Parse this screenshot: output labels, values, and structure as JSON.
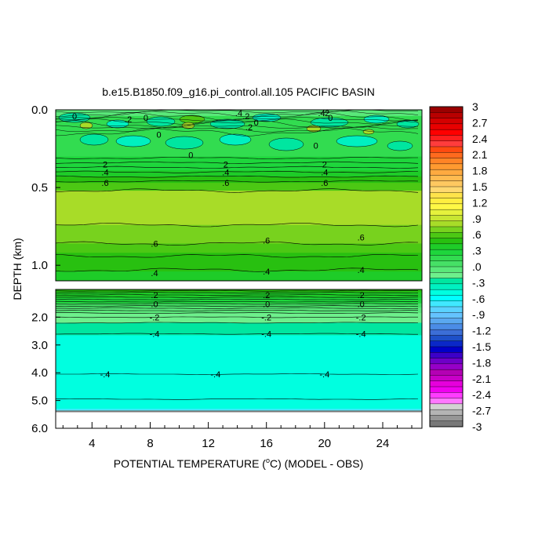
{
  "chart_data": {
    "type": "heatmap",
    "title": "b.e15.B1850.f09_g16.pi_control.all.105 PACIFIC BASIN",
    "xlabel_main": "POTENTIAL TEMPERATURE (",
    "xlabel_unit_sup": "o",
    "xlabel_unit": "C) (MODEL - OBS)",
    "ylabel": "DEPTH (km)",
    "x_range": [
      1.5,
      26.7
    ],
    "x_ticks": [
      4,
      8,
      12,
      16,
      20,
      24
    ],
    "x_tick_labels": [
      "4",
      "8",
      "12",
      "16",
      "20",
      "24"
    ],
    "upper_panel": {
      "depth_range": [
        0.0,
        1.1
      ],
      "y_ticks": [
        0.0,
        0.5,
        1.0
      ],
      "y_tick_labels": [
        "0.0",
        "0.5",
        "1.0"
      ],
      "bands": [
        {
          "top": 0.0,
          "bottom": 0.04,
          "value": 0.0
        },
        {
          "top": 0.04,
          "bottom": 0.12,
          "value": 0.2
        },
        {
          "top": 0.12,
          "bottom": 0.3,
          "value": 0.15
        },
        {
          "top": 0.3,
          "bottom": 0.35,
          "value": 0.25
        },
        {
          "top": 0.35,
          "bottom": 0.39,
          "value": 0.3
        },
        {
          "top": 0.39,
          "bottom": 0.43,
          "value": 0.4
        },
        {
          "top": 0.43,
          "bottom": 0.47,
          "value": 0.5
        },
        {
          "top": 0.47,
          "bottom": 0.52,
          "value": 0.6
        },
        {
          "top": 0.52,
          "bottom": 0.74,
          "value": 0.8
        },
        {
          "top": 0.74,
          "bottom": 0.86,
          "value": 0.7
        },
        {
          "top": 0.86,
          "bottom": 0.92,
          "value": 0.55
        },
        {
          "top": 0.92,
          "bottom": 1.04,
          "value": 0.45
        },
        {
          "top": 1.04,
          "bottom": 1.1,
          "value": 0.35
        }
      ],
      "contour_depths": [
        0.31,
        0.34,
        0.37,
        0.4,
        0.43,
        0.46,
        0.52,
        0.74,
        0.86,
        0.94,
        1.03
      ],
      "contour_labels": [
        {
          "text": "0",
          "x": 2.8,
          "depth": 0.04
        },
        {
          "text": ".2",
          "x": 6.5,
          "depth": 0.06
        },
        {
          "text": "0",
          "x": 7.7,
          "depth": 0.05
        },
        {
          "text": ".4",
          "x": 14.1,
          "depth": 0.02
        },
        {
          "text": ".2",
          "x": 14.6,
          "depth": 0.04
        },
        {
          "text": "0",
          "x": 15.3,
          "depth": 0.08
        },
        {
          "text": ".2",
          "x": 14.8,
          "depth": 0.11
        },
        {
          "text": ".4",
          "x": 19.8,
          "depth": 0.02
        },
        {
          "text": ".2",
          "x": 20.1,
          "depth": 0.02
        },
        {
          "text": "0",
          "x": 20.4,
          "depth": 0.05
        },
        {
          "text": "0",
          "x": 8.6,
          "depth": 0.16
        },
        {
          "text": "0",
          "x": 19.4,
          "depth": 0.23
        },
        {
          "text": "0",
          "x": 10.8,
          "depth": 0.29
        },
        {
          "text": "2",
          "x": 4.9,
          "depth": 0.35
        },
        {
          "text": "2",
          "x": 13.2,
          "depth": 0.35
        },
        {
          "text": "2",
          "x": 20.0,
          "depth": 0.35
        },
        {
          "text": ".4",
          "x": 4.9,
          "depth": 0.4
        },
        {
          "text": ".4",
          "x": 13.2,
          "depth": 0.4
        },
        {
          "text": ".4",
          "x": 20.0,
          "depth": 0.4
        },
        {
          "text": ".6",
          "x": 4.9,
          "depth": 0.47
        },
        {
          "text": ".6",
          "x": 13.2,
          "depth": 0.47
        },
        {
          "text": ".6",
          "x": 20.0,
          "depth": 0.47
        },
        {
          "text": ".6",
          "x": 8.3,
          "depth": 0.86
        },
        {
          "text": ".6",
          "x": 16.0,
          "depth": 0.84
        },
        {
          "text": ".6",
          "x": 22.5,
          "depth": 0.82
        },
        {
          "text": ".4",
          "x": 8.3,
          "depth": 1.05
        },
        {
          "text": ".4",
          "x": 16.0,
          "depth": 1.04
        },
        {
          "text": ".4",
          "x": 22.5,
          "depth": 1.03
        }
      ]
    },
    "lower_panel": {
      "depth_range": [
        1.0,
        6.0
      ],
      "y_ticks": [
        2.0,
        3.0,
        4.0,
        5.0,
        6.0
      ],
      "y_tick_labels": [
        "2.0",
        "3.0",
        "4.0",
        "5.0",
        "6.0"
      ],
      "bands": [
        {
          "top": 1.0,
          "bottom": 1.1,
          "value": 0.45
        },
        {
          "top": 1.1,
          "bottom": 1.3,
          "value": 0.35
        },
        {
          "top": 1.3,
          "bottom": 1.5,
          "value": 0.25
        },
        {
          "top": 1.5,
          "bottom": 1.65,
          "value": 0.1
        },
        {
          "top": 1.65,
          "bottom": 1.85,
          "value": 0.0
        },
        {
          "top": 1.85,
          "bottom": 2.2,
          "value": -0.15
        },
        {
          "top": 2.2,
          "bottom": 2.65,
          "value": -0.3
        },
        {
          "top": 2.65,
          "bottom": 5.3,
          "value": -0.5
        },
        {
          "top": 5.3,
          "bottom": 5.36,
          "value": -0.65
        },
        {
          "top": 5.36,
          "bottom": 5.42,
          "value": -3.0
        }
      ],
      "contour_depths": [
        1.05,
        1.12,
        1.2,
        1.28,
        1.36,
        1.44,
        1.52,
        1.6,
        1.68,
        1.76,
        1.85,
        2.0,
        2.2,
        2.6,
        4.05,
        4.95
      ],
      "contour_labels": [
        {
          "text": ".2",
          "x": 8.3,
          "depth": 1.2
        },
        {
          "text": ".2",
          "x": 16.0,
          "depth": 1.2
        },
        {
          "text": ".2",
          "x": 22.5,
          "depth": 1.2
        },
        {
          "text": ".0",
          "x": 8.3,
          "depth": 1.52
        },
        {
          "text": ".0",
          "x": 16.0,
          "depth": 1.52
        },
        {
          "text": ".0",
          "x": 22.5,
          "depth": 1.52
        },
        {
          "text": "-.2",
          "x": 8.3,
          "depth": 2.0
        },
        {
          "text": "-.2",
          "x": 16.0,
          "depth": 2.0
        },
        {
          "text": "-.2",
          "x": 22.5,
          "depth": 2.0
        },
        {
          "text": "-.4",
          "x": 8.3,
          "depth": 2.6
        },
        {
          "text": "-.4",
          "x": 16.0,
          "depth": 2.6
        },
        {
          "text": "-.4",
          "x": 22.5,
          "depth": 2.6
        },
        {
          "text": "-.4",
          "x": 4.9,
          "depth": 4.05
        },
        {
          "text": "-.4",
          "x": 12.5,
          "depth": 4.05
        },
        {
          "text": "-.4",
          "x": 20.0,
          "depth": 4.05
        }
      ]
    },
    "colorbar": {
      "labels": [
        "3",
        "2.7",
        "2.4",
        "2.1",
        "1.8",
        "1.5",
        "1.2",
        ".9",
        ".6",
        ".3",
        ".0",
        "-.3",
        "-.6",
        "-.9",
        "-1.2",
        "-1.5",
        "-1.8",
        "-2.1",
        "-2.4",
        "-2.7",
        "-3"
      ],
      "colors_top_to_bottom": [
        "#9a0000",
        "#b80000",
        "#d40000",
        "#e80000",
        "#ff0000",
        "#ff1e1e",
        "#ff3c3c",
        "#ff4a10",
        "#ff6a1e",
        "#ff8426",
        "#ff9a30",
        "#ffaa40",
        "#ffbb50",
        "#ffc860",
        "#ffd870",
        "#ffe34a",
        "#ffee40",
        "#fff845",
        "#e6f23c",
        "#c8e632",
        "#a8dc28",
        "#78d21e",
        "#4cc814",
        "#28c010",
        "#1ecc28",
        "#1ed63c",
        "#32dc50",
        "#46e066",
        "#5ae87a",
        "#6ef08c",
        "#00e6a0",
        "#00f0c0",
        "#00ffe0",
        "#00ffff",
        "#40e8ff",
        "#5ad2ff",
        "#64c3ff",
        "#5aa8f0",
        "#4b8ce6",
        "#3c6ed7",
        "#1e50c8",
        "#0a28c8",
        "#0000c8",
        "#3c00c8",
        "#6e00c8",
        "#9600c8",
        "#b400b4",
        "#c800c8",
        "#e600dc",
        "#f000f0",
        "#ff3cff",
        "#ff78ff",
        "#d2d2d2",
        "#b4b4b4",
        "#969696",
        "#787878"
      ]
    }
  }
}
